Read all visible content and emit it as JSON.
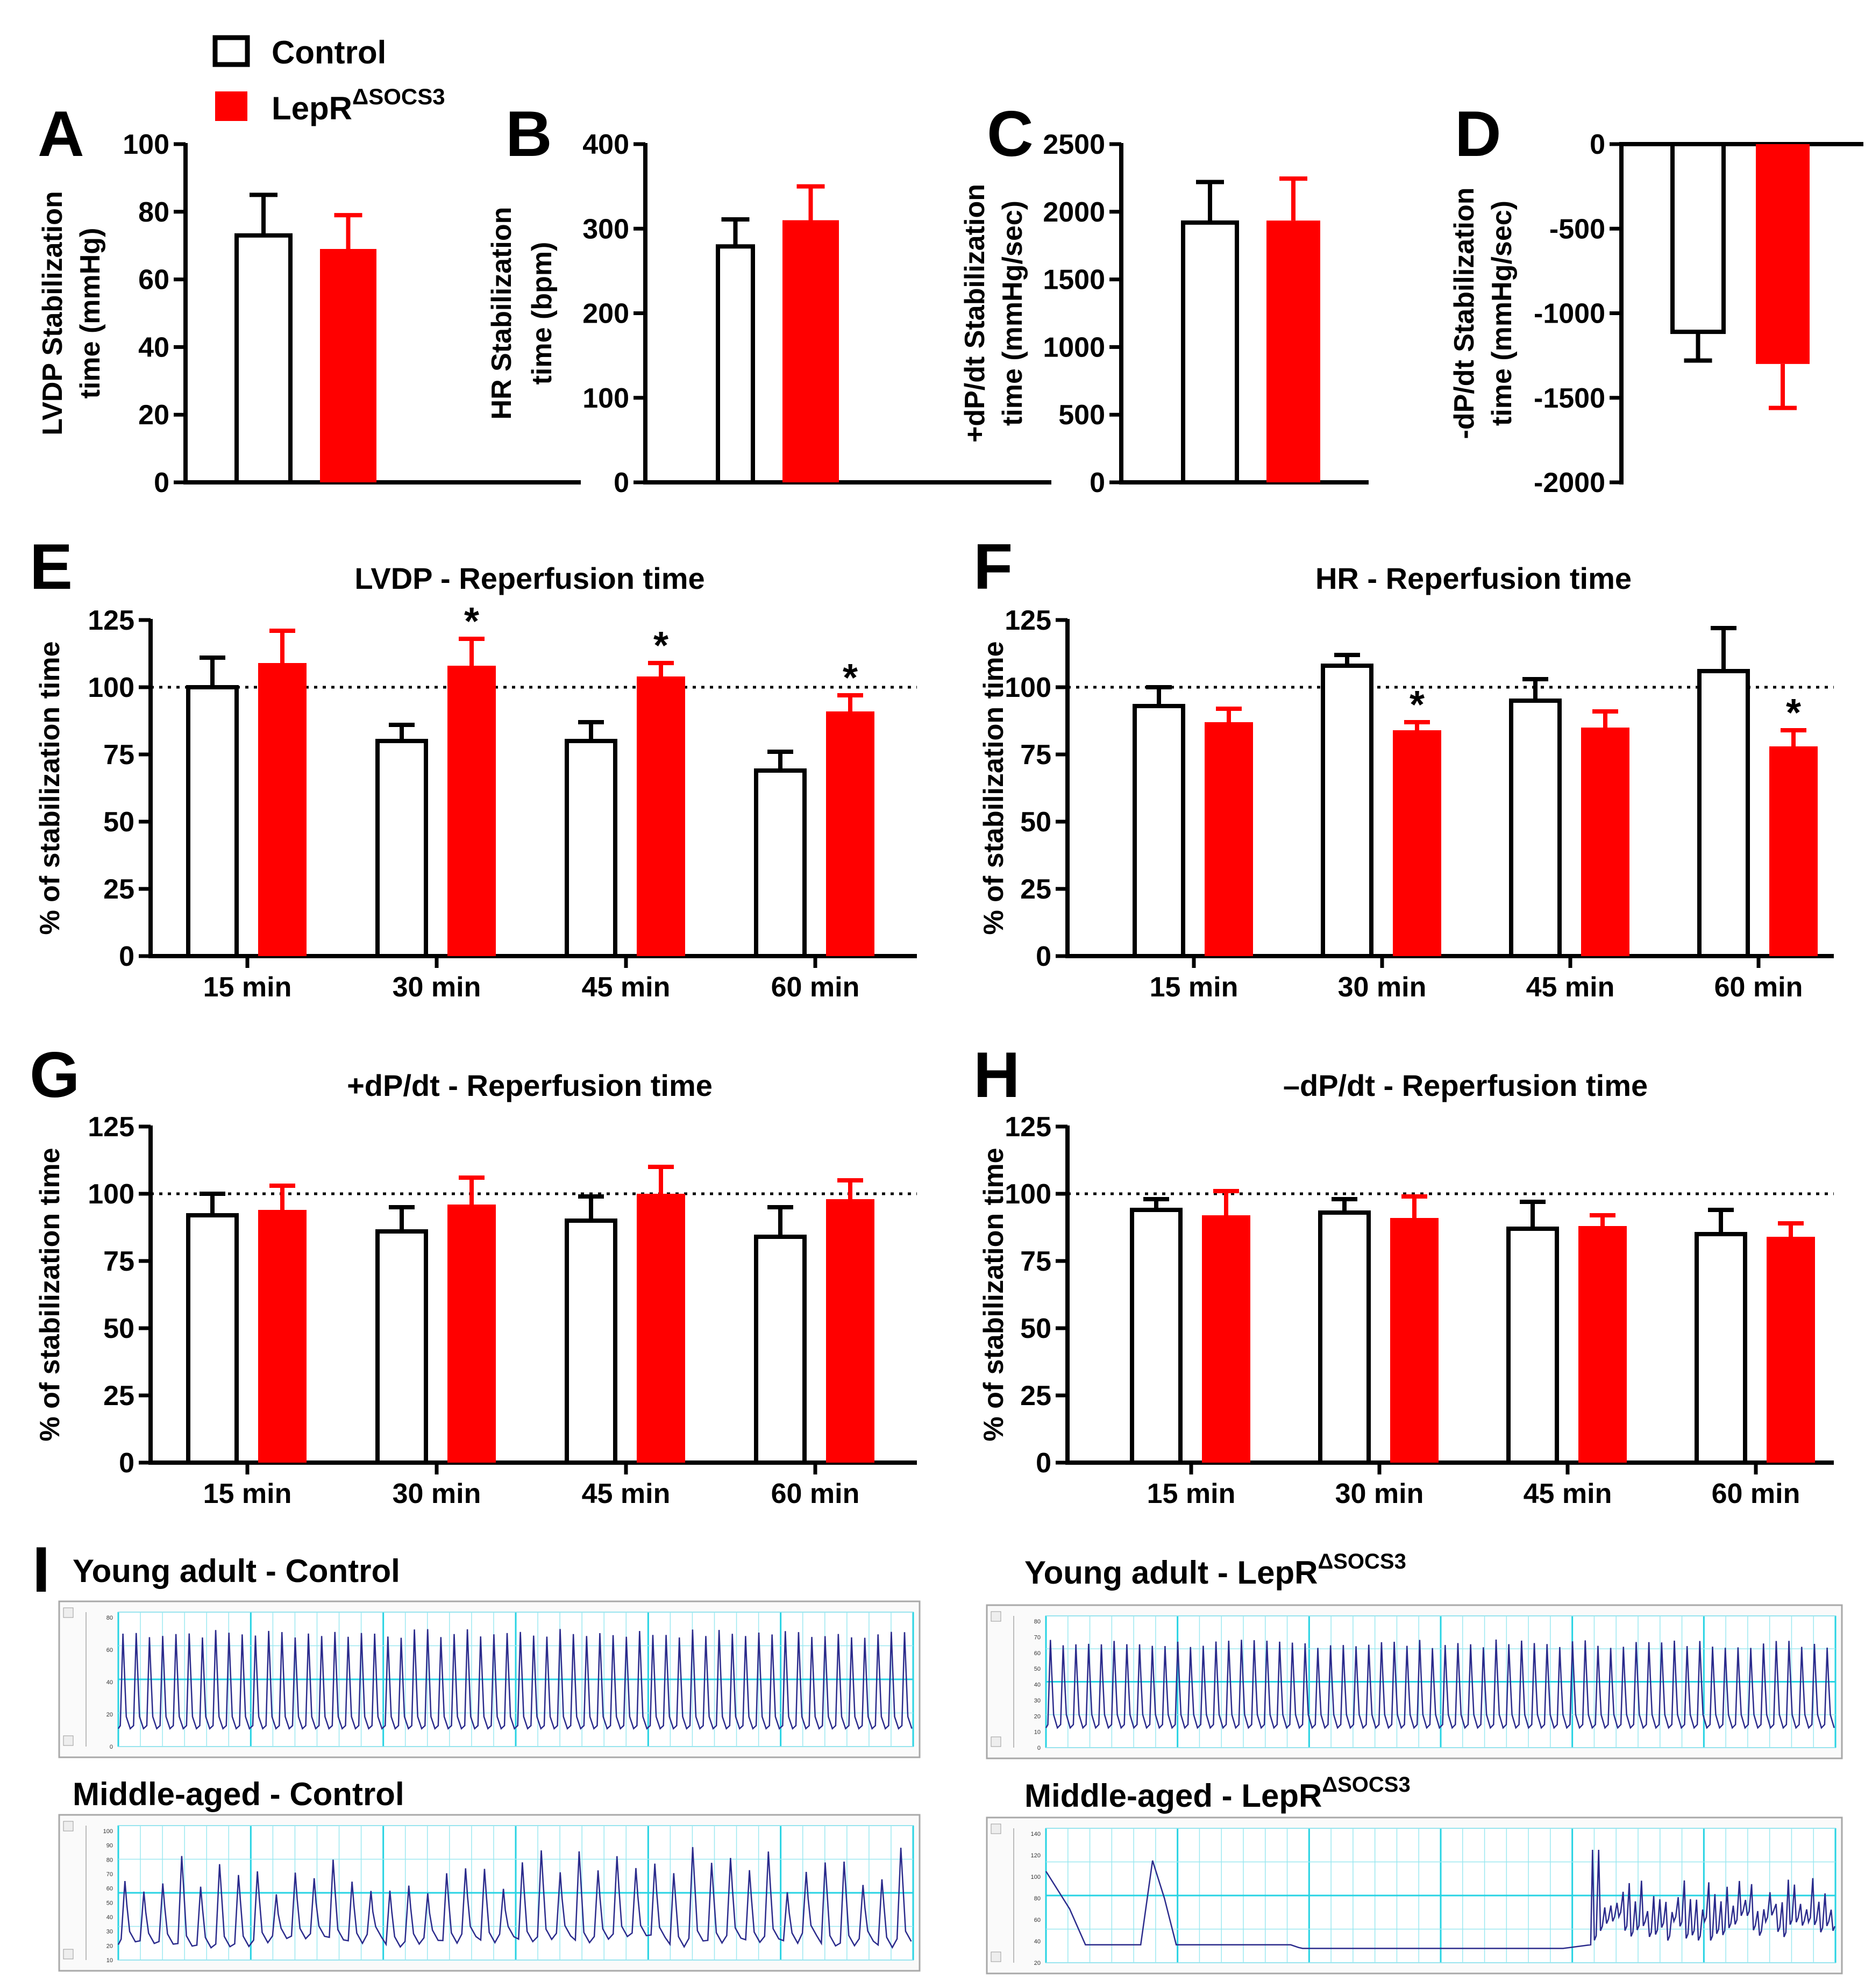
{
  "colors": {
    "control_fill": "#ffffff",
    "treated_fill": "#ff0000",
    "axis": "#000000",
    "trace": "#2b2b8c",
    "trace_grid": "#27d3e3"
  },
  "legend": {
    "control": "Control",
    "treated_base": "LepR",
    "treated_sup": "ΔSOCS3"
  },
  "chart_data": [
    {
      "panel": "A",
      "type": "bar",
      "ylabel": [
        "LVDP Stabilization",
        "time (mmHg)"
      ],
      "ylim": [
        0,
        100
      ],
      "yticks": [
        0,
        20,
        40,
        60,
        80,
        100
      ],
      "series": [
        {
          "name": "Control",
          "value": 73,
          "err": 12
        },
        {
          "name": "LepRΔSOCS3",
          "value": 69,
          "err": 10
        }
      ]
    },
    {
      "panel": "B",
      "type": "bar",
      "ylabel": [
        "HR Stabilization",
        "time (bpm)"
      ],
      "ylim": [
        0,
        400
      ],
      "yticks": [
        0,
        100,
        200,
        300,
        400
      ],
      "series": [
        {
          "name": "Control",
          "value": 279,
          "err": 32
        },
        {
          "name": "LepRΔSOCS3",
          "value": 310,
          "err": 40
        }
      ]
    },
    {
      "panel": "C",
      "type": "bar",
      "ylabel": [
        "+dP/dt Stabilization",
        "time (mmHg/sec)"
      ],
      "ylim": [
        0,
        2500
      ],
      "yticks": [
        0,
        500,
        1000,
        1500,
        2000,
        2500
      ],
      "series": [
        {
          "name": "Control",
          "value": 1920,
          "err": 300
        },
        {
          "name": "LepRΔSOCS3",
          "value": 1935,
          "err": 310
        }
      ]
    },
    {
      "panel": "D",
      "type": "bar",
      "ylabel": [
        "-dP/dt Stabilization",
        "time (mmHg/sec)"
      ],
      "ylim": [
        -2000,
        0
      ],
      "yticks": [
        0,
        -500,
        -1000,
        -1500,
        -2000
      ],
      "series": [
        {
          "name": "Control",
          "value": -1110,
          "err": 170
        },
        {
          "name": "LepRΔSOCS3",
          "value": -1300,
          "err": 260
        }
      ]
    },
    {
      "panel": "E",
      "type": "bar",
      "title": "LVDP - Reperfusion time",
      "ylabel": [
        "% of stabilization time"
      ],
      "ylim": [
        0,
        125
      ],
      "yticks": [
        0,
        25,
        50,
        75,
        100,
        125
      ],
      "refline": 100,
      "categories": [
        "15 min",
        "30 min",
        "45 min",
        "60 min"
      ],
      "series": [
        {
          "name": "Control",
          "values": [
            100,
            80,
            80,
            69
          ],
          "err": [
            11,
            6,
            7,
            7
          ]
        },
        {
          "name": "LepRΔSOCS3",
          "values": [
            109,
            108,
            104,
            91
          ],
          "err": [
            12,
            10,
            5,
            6
          ]
        }
      ],
      "significance": [
        "",
        "*",
        "*",
        "*"
      ]
    },
    {
      "panel": "F",
      "type": "bar",
      "title": "HR - Reperfusion time",
      "ylabel": [
        "% of stabilization time"
      ],
      "ylim": [
        0,
        125
      ],
      "yticks": [
        0,
        25,
        50,
        75,
        100,
        125
      ],
      "refline": 100,
      "categories": [
        "15 min",
        "30 min",
        "45 min",
        "60 min"
      ],
      "series": [
        {
          "name": "Control",
          "values": [
            93,
            108,
            95,
            106
          ],
          "err": [
            7,
            4,
            8,
            16
          ]
        },
        {
          "name": "LepRΔSOCS3",
          "values": [
            87,
            84,
            85,
            78
          ],
          "err": [
            5,
            3,
            6,
            6
          ]
        }
      ],
      "significance": [
        "",
        "*",
        "",
        "*"
      ]
    },
    {
      "panel": "G",
      "type": "bar",
      "title": "+dP/dt - Reperfusion time",
      "ylabel": [
        "% of stabilization time"
      ],
      "ylim": [
        0,
        125
      ],
      "yticks": [
        0,
        25,
        50,
        75,
        100,
        125
      ],
      "refline": 100,
      "categories": [
        "15 min",
        "30 min",
        "45 min",
        "60 min"
      ],
      "series": [
        {
          "name": "Control",
          "values": [
            92,
            86,
            90,
            84
          ],
          "err": [
            8,
            9,
            9,
            11
          ]
        },
        {
          "name": "LepRΔSOCS3",
          "values": [
            94,
            96,
            100,
            98
          ],
          "err": [
            9,
            10,
            10,
            7
          ]
        }
      ],
      "significance": [
        "",
        "",
        "",
        ""
      ]
    },
    {
      "panel": "H",
      "type": "bar",
      "title": "–dP/dt - Reperfusion time",
      "ylabel": [
        "% of stabilization time"
      ],
      "ylim": [
        0,
        125
      ],
      "yticks": [
        0,
        25,
        50,
        75,
        100,
        125
      ],
      "refline": 100,
      "categories": [
        "15 min",
        "30 min",
        "45 min",
        "60 min"
      ],
      "series": [
        {
          "name": "Control",
          "values": [
            94,
            93,
            87,
            85
          ],
          "err": [
            4,
            5,
            10,
            9
          ]
        },
        {
          "name": "LepRΔSOCS3",
          "values": [
            92,
            91,
            88,
            84
          ],
          "err": [
            9,
            8,
            4,
            5
          ]
        }
      ],
      "significance": [
        "",
        "",
        "",
        ""
      ]
    }
  ],
  "traces": {
    "panel": "I",
    "items": [
      {
        "title": "Young adult - Control",
        "sup": "",
        "yticks": [
          "80",
          "60",
          "40",
          "20",
          "0"
        ],
        "ymax": 90,
        "kind": "regular",
        "beats": 60,
        "peak": 78,
        "trough": 12
      },
      {
        "title": "Young adult - LepR",
        "sup": "ΔSOCS3",
        "yticks": [
          "80",
          "70",
          "60",
          "50",
          "40",
          "30",
          "20",
          "10",
          "0"
        ],
        "ymax": 80,
        "kind": "regular",
        "beats": 62,
        "peak": 65,
        "trough": 12
      },
      {
        "title": "Middle-aged - Control",
        "sup": "",
        "yticks": [
          "100",
          "90",
          "80",
          "70",
          "60",
          "50",
          "40",
          "30",
          "20",
          "10"
        ],
        "ymax": 105,
        "kind": "irregular",
        "beats": 42,
        "peak": 85,
        "trough": 12
      },
      {
        "title": "Middle-aged - LepR",
        "sup": "ΔSOCS3",
        "yticks": [
          "140",
          "120",
          "100",
          "80",
          "60",
          "40",
          "20"
        ],
        "ymax": 150,
        "kind": "arrest",
        "beats": 40,
        "peak": 120,
        "trough": 20
      }
    ]
  }
}
